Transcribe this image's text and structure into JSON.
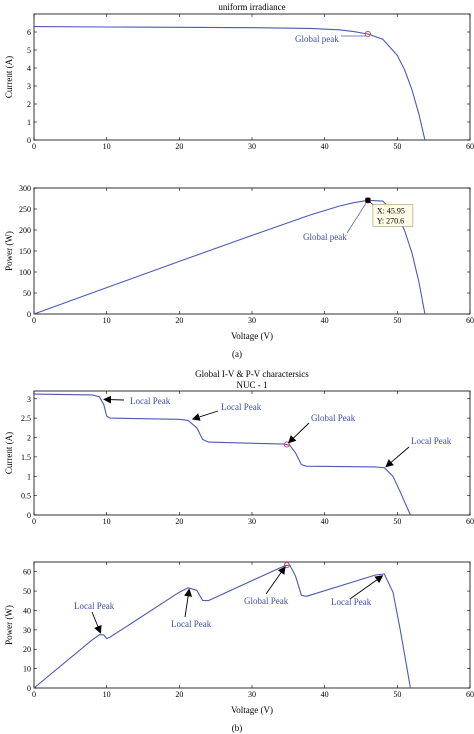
{
  "captions": [
    "(a)",
    "(b)"
  ],
  "chart_data": [
    {
      "type": "line",
      "title": "uniform irradiance",
      "xlabel": "",
      "ylabel": "Current (A)",
      "xlim": [
        0,
        60
      ],
      "ylim": [
        0,
        7
      ],
      "xticks": [
        "0",
        "10",
        "20",
        "30",
        "40",
        "50",
        "60"
      ],
      "yticks": [
        "0",
        "1",
        "2",
        "3",
        "4",
        "5",
        "6"
      ],
      "series": [
        {
          "x": [
            0,
            10,
            20,
            30,
            38,
            42,
            44,
            45.95,
            48,
            50,
            51,
            52,
            53,
            53.8
          ],
          "y": [
            6.3,
            6.28,
            6.26,
            6.24,
            6.2,
            6.12,
            6.02,
            5.89,
            5.6,
            4.7,
            3.9,
            2.8,
            1.4,
            0
          ]
        }
      ],
      "annotations": [
        {
          "text": "Global peak",
          "x": 45.95,
          "y": 5.89
        }
      ]
    },
    {
      "type": "line",
      "title": "",
      "xlabel": "Voltage (V)",
      "ylabel": "Power (W)",
      "xlim": [
        0,
        60
      ],
      "ylim": [
        0,
        300
      ],
      "xticks": [
        "0",
        "10",
        "20",
        "30",
        "40",
        "50",
        "60"
      ],
      "yticks": [
        "0",
        "50",
        "100",
        "150",
        "200",
        "250",
        "300"
      ],
      "series": [
        {
          "x": [
            0,
            10,
            20,
            30,
            38,
            42,
            44,
            45.95,
            48,
            50,
            51,
            52,
            53,
            53.8
          ],
          "y": [
            0,
            62.8,
            125.2,
            187.2,
            235.6,
            257,
            264.9,
            270.6,
            268.8,
            235,
            198.9,
            145.6,
            74.2,
            0
          ]
        }
      ],
      "annotations": [
        {
          "text": "Global peak",
          "x": 45.95,
          "y": 270.6
        }
      ],
      "datatip": {
        "line1": "X: 45.95",
        "line2": "Y: 270.6"
      }
    },
    {
      "type": "line",
      "title": "Global I-V & P-V charactersics",
      "subtitle": "NUC - 1",
      "xlabel": "",
      "ylabel": "Current (A)",
      "xlim": [
        0,
        60
      ],
      "ylim": [
        0,
        3.2
      ],
      "xticks": [
        "0",
        "10",
        "20",
        "30",
        "40",
        "50",
        "60"
      ],
      "yticks": [
        "0",
        "0.5",
        "1",
        "1.5",
        "2",
        "2.5",
        "3"
      ],
      "series": [
        {
          "x": [
            0,
            8,
            9,
            9.6,
            10,
            10.5,
            20,
            21.2,
            22.4,
            23.2,
            24,
            34.5,
            35.2,
            36,
            36.8,
            37.5,
            47,
            48.2,
            49.4,
            50.4,
            51.2,
            51.8
          ],
          "y": [
            3.12,
            3.1,
            3.05,
            2.85,
            2.55,
            2.5,
            2.47,
            2.44,
            2.25,
            1.95,
            1.88,
            1.83,
            1.8,
            1.6,
            1.3,
            1.26,
            1.24,
            1.22,
            1.0,
            0.6,
            0.25,
            0
          ]
        }
      ],
      "annotations": [
        {
          "text": "Local Peak",
          "x": 9.4,
          "y": 3.03
        },
        {
          "text": "Local Peak",
          "x": 21.6,
          "y": 2.43
        },
        {
          "text": "Global Peak",
          "x": 34.8,
          "y": 1.82
        },
        {
          "text": "Local Peak",
          "x": 48.2,
          "y": 1.2
        }
      ]
    },
    {
      "type": "line",
      "title": "",
      "xlabel": "Voltage (V)",
      "ylabel": "Power (W)",
      "xlim": [
        0,
        60
      ],
      "ylim": [
        0,
        65
      ],
      "xticks": [
        "0",
        "10",
        "20",
        "30",
        "40",
        "50",
        "60"
      ],
      "yticks": [
        "0",
        "10",
        "20",
        "30",
        "40",
        "50",
        "60"
      ],
      "series": [
        {
          "x": [
            0,
            8,
            9,
            9.6,
            10,
            10.5,
            20,
            21.2,
            22.4,
            23.2,
            24,
            34.5,
            35.2,
            36,
            36.8,
            37.5,
            47,
            48.2,
            49.4,
            50.4,
            51.2,
            51.8
          ],
          "y": [
            0,
            24.8,
            27.5,
            27.4,
            25.5,
            26.3,
            49.4,
            51.7,
            50.4,
            45.2,
            45.1,
            63.1,
            63.4,
            57.6,
            47.8,
            47.3,
            58.3,
            58.8,
            49.4,
            30.2,
            12.8,
            0
          ]
        }
      ],
      "annotations": [
        {
          "text": "Local Peak",
          "x": 9.4,
          "y": 27.5
        },
        {
          "text": "Local Peak",
          "x": 21.6,
          "y": 51.8
        },
        {
          "text": "Global Peak",
          "x": 34.8,
          "y": 63.4
        },
        {
          "text": "Local Peak",
          "x": 48.2,
          "y": 58.8
        }
      ]
    }
  ]
}
